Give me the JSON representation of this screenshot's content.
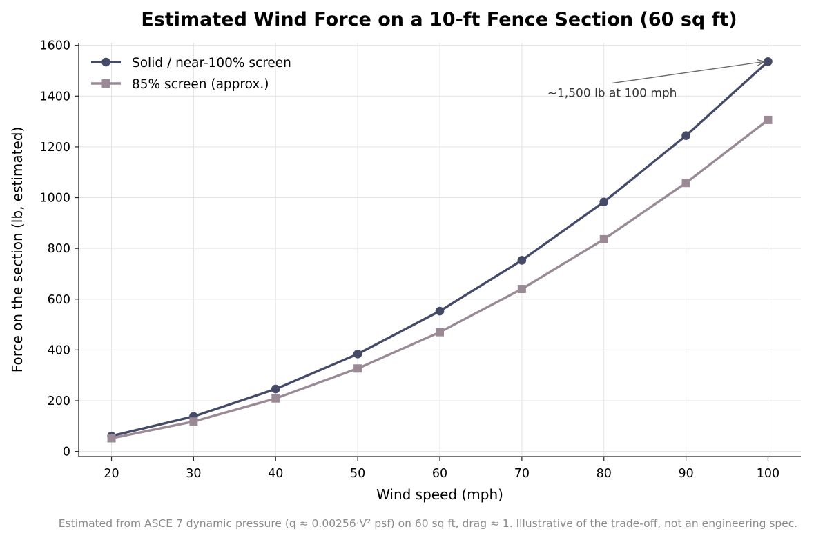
{
  "chart_data": {
    "type": "line",
    "title": "Estimated Wind Force on a 10-ft Fence Section (60 sq ft)",
    "xlabel": "Wind speed (mph)",
    "ylabel": "Force on the section (lb, estimated)",
    "x": [
      20,
      30,
      40,
      50,
      60,
      70,
      80,
      90,
      100
    ],
    "xticks": [
      "20",
      "30",
      "40",
      "50",
      "60",
      "70",
      "80",
      "90",
      "100"
    ],
    "xlim": [
      16,
      104
    ],
    "yticks": [
      "0",
      "200",
      "400",
      "600",
      "800",
      "1000",
      "1200",
      "1400",
      "1600"
    ],
    "ylim": [
      -20,
      1610
    ],
    "grid": true,
    "legend_position": "top-left",
    "series": [
      {
        "name": "Solid / near-100% screen",
        "color": "#454a66",
        "marker": "circle",
        "values": [
          61,
          138,
          246,
          384,
          553,
          753,
          983,
          1244,
          1536
        ]
      },
      {
        "name": "85% screen (approx.)",
        "color": "#9a8a96",
        "marker": "square",
        "values": [
          52,
          118,
          209,
          327,
          470,
          640,
          836,
          1058,
          1306
        ]
      }
    ],
    "annotation": {
      "text": "~1,500 lb at 100 mph",
      "x": 100,
      "y": 1536,
      "text_x": 81,
      "text_y": 1413
    },
    "footnote": "Estimated from ASCE 7 dynamic pressure (q ≈ 0.00256·V² psf) on 60 sq ft, drag ≈ 1. Illustrative of the trade-off, not an engineering spec."
  }
}
